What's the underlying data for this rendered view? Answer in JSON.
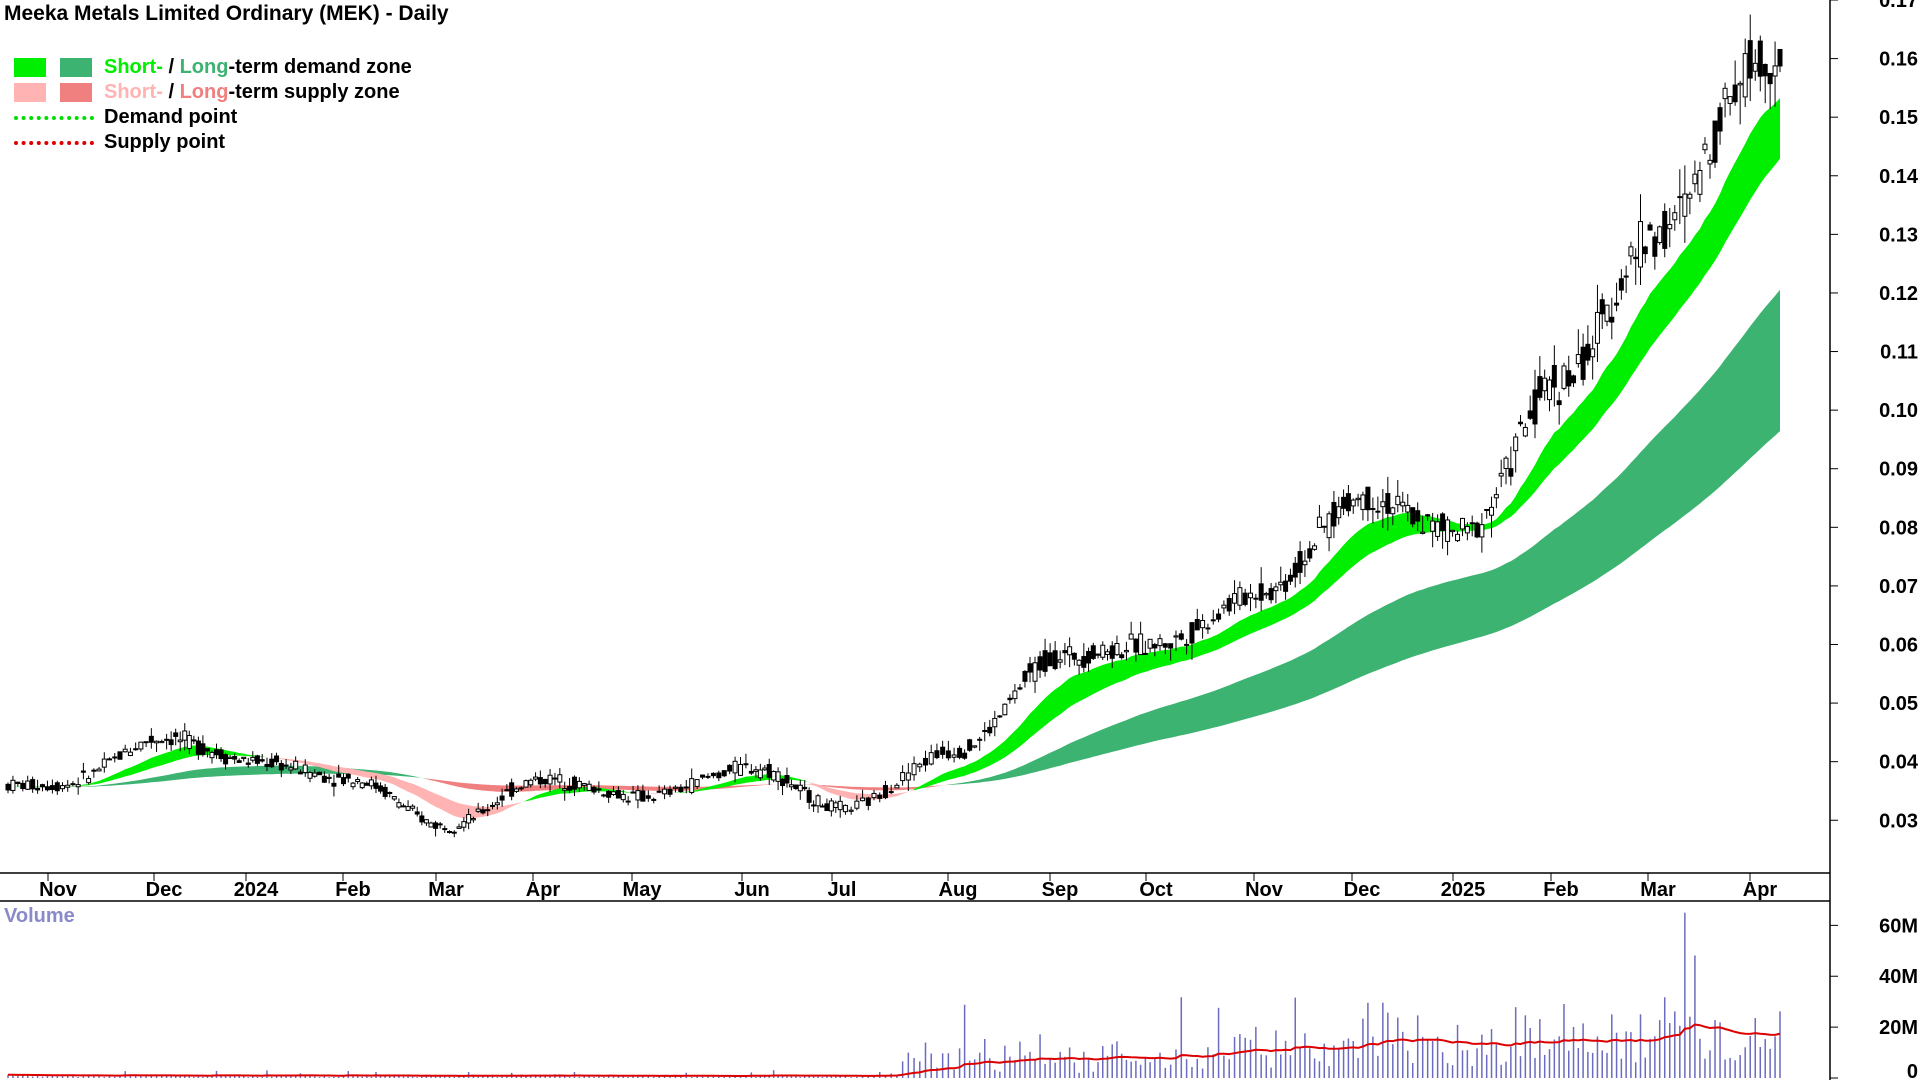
{
  "chart_data": {
    "type": "candlestick",
    "title": "Meeka Metals Limited Ordinary (MEK) - Daily",
    "legend": {
      "demand_zone": {
        "short": "Short-",
        "sep": " / ",
        "long": "Long",
        "rest": "-term demand zone"
      },
      "supply_zone": {
        "short": "Short-",
        "sep": " / ",
        "long": "Long",
        "rest": "-term supply zone"
      },
      "demand_point": "Demand point",
      "supply_point": "Supply point",
      "placement": "top-left"
    },
    "x_ticks": [
      "Nov",
      "Dec",
      "2024",
      "Feb",
      "Mar",
      "Apr",
      "May",
      "Jun",
      "Jul",
      "Aug",
      "Sep",
      "Oct",
      "Nov",
      "Dec",
      "2025",
      "Feb",
      "Mar",
      "Apr"
    ],
    "y_ticks": [
      "0.03",
      "0.04",
      "0.05",
      "0.06",
      "0.07",
      "0.08",
      "0.09",
      "0.10",
      "0.11",
      "0.12",
      "0.13",
      "0.14",
      "0.15",
      "0.16",
      "0.17"
    ],
    "ylim": [
      0.021,
      0.17
    ],
    "price_path": {
      "approx_close_by_month": [
        {
          "month": "Nov",
          "close": 0.036
        },
        {
          "month": "Dec",
          "close": 0.044
        },
        {
          "month": "2024",
          "close": 0.04
        },
        {
          "month": "Feb",
          "close": 0.037
        },
        {
          "month": "Mar",
          "close": 0.029
        },
        {
          "month": "Apr",
          "close": 0.037
        },
        {
          "month": "May",
          "close": 0.034
        },
        {
          "month": "Jun",
          "close": 0.039
        },
        {
          "month": "Jul",
          "close": 0.032
        },
        {
          "month": "Aug",
          "close": 0.042
        },
        {
          "month": "Sep",
          "close": 0.058
        },
        {
          "month": "Oct",
          "close": 0.06
        },
        {
          "month": "Nov",
          "close": 0.069
        },
        {
          "month": "Dec",
          "close": 0.085
        },
        {
          "month": "2025",
          "close": 0.079
        },
        {
          "month": "Feb",
          "close": 0.105
        },
        {
          "month": "Mar",
          "close": 0.13
        },
        {
          "month": "Apr",
          "close": 0.16
        }
      ]
    },
    "volume": {
      "label": "Volume",
      "y_ticks": [
        "0",
        "20M",
        "40M",
        "60M"
      ],
      "ylim_millions": [
        0,
        68
      ]
    },
    "colors": {
      "short_demand": "#00ee00",
      "long_demand": "#3cb371",
      "short_supply": "#ffb3b3",
      "long_supply": "#f07f7f",
      "transition": "#ff7f27",
      "demand_point": "#00dd00",
      "supply_point": "#dd0000",
      "volume_bars": "#6b6bbf",
      "volume_avg": "#dd0000",
      "volume_label": "#8a8ac8"
    }
  }
}
